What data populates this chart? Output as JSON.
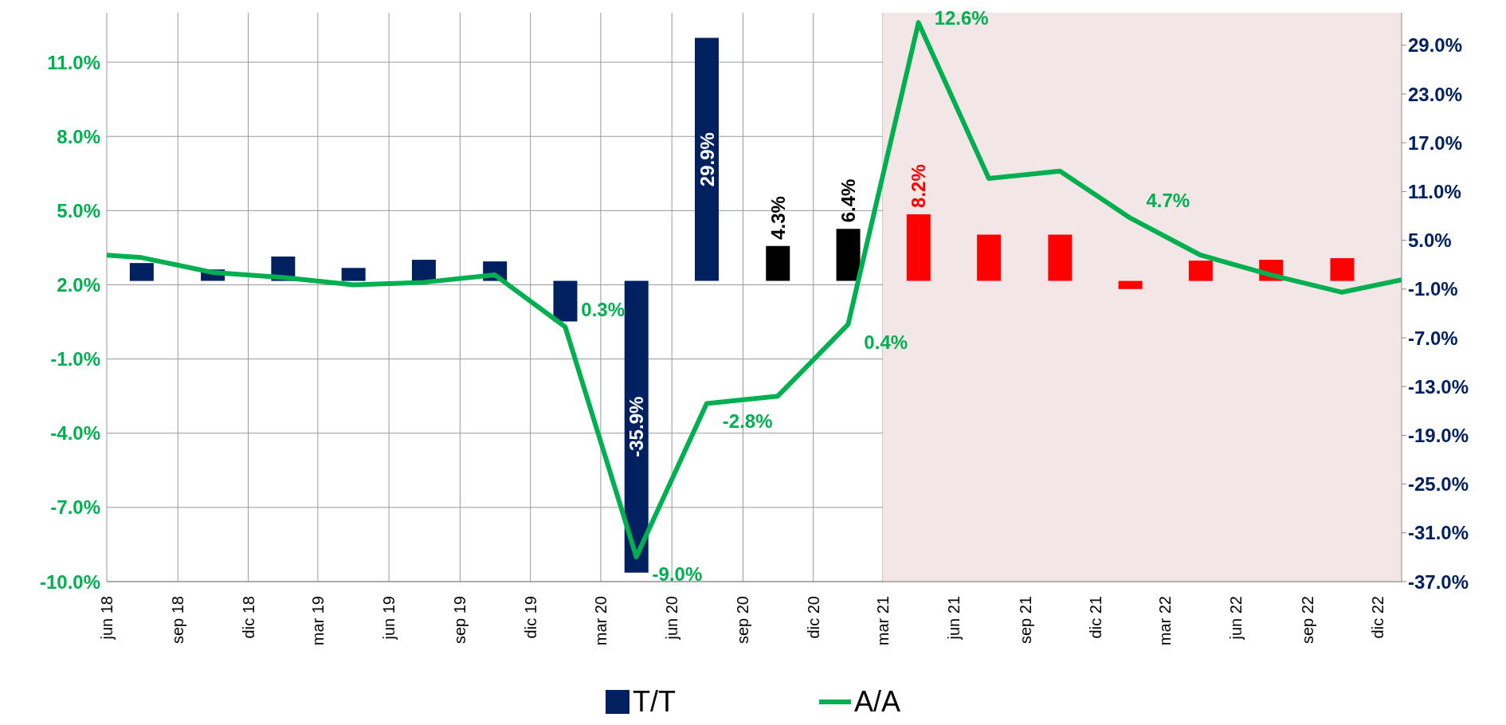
{
  "chart_data": {
    "type": "bar",
    "xlim": [
      "2018-06",
      "2023-01"
    ],
    "xticks": [
      {
        "value": "2018-06",
        "label": "jun 18"
      },
      {
        "value": "2018-09",
        "label": "sep 18"
      },
      {
        "value": "2018-12",
        "label": "dic 18"
      },
      {
        "value": "2019-03",
        "label": "mar 19"
      },
      {
        "value": "2019-06",
        "label": "jun 19"
      },
      {
        "value": "2019-09",
        "label": "sep 19"
      },
      {
        "value": "2019-12",
        "label": "dic 19"
      },
      {
        "value": "2020-03",
        "label": "mar 20"
      },
      {
        "value": "2020-06",
        "label": "jun 20"
      },
      {
        "value": "2020-09",
        "label": "sep 20"
      },
      {
        "value": "2020-12",
        "label": "dic 20"
      },
      {
        "value": "2021-03",
        "label": "mar 21"
      },
      {
        "value": "2021-06",
        "label": "jun 21"
      },
      {
        "value": "2021-09",
        "label": "sep 21"
      },
      {
        "value": "2021-12",
        "label": "dic 21"
      },
      {
        "value": "2022-03",
        "label": "mar 22"
      },
      {
        "value": "2022-06",
        "label": "jun 22"
      },
      {
        "value": "2022-09",
        "label": "sep 22"
      },
      {
        "value": "2022-12",
        "label": "dic 22"
      }
    ],
    "ylim": [
      -10,
      13
    ],
    "yticks": [
      {
        "value": -10,
        "label": "-10.0%"
      },
      {
        "value": -7,
        "label": "-7.0%"
      },
      {
        "value": -4,
        "label": "-4.0%"
      },
      {
        "value": -1,
        "label": "-1.0%"
      },
      {
        "value": 2,
        "label": "2.0%"
      },
      {
        "value": 5,
        "label": "5.0%"
      },
      {
        "value": 8,
        "label": "8.0%"
      },
      {
        "value": 11,
        "label": "11.0%"
      }
    ],
    "y2lim": [
      -37,
      33
    ],
    "y2ticks": [
      {
        "value": -37,
        "label": "-37.0%"
      },
      {
        "value": -31,
        "label": "-31.0%"
      },
      {
        "value": -25,
        "label": "-25.0%"
      },
      {
        "value": -19,
        "label": "-19.0%"
      },
      {
        "value": -13,
        "label": "-13.0%"
      },
      {
        "value": -7,
        "label": "-7.0%"
      },
      {
        "value": -1,
        "label": "-1.0%"
      },
      {
        "value": 5,
        "label": "5.0%"
      },
      {
        "value": 11,
        "label": "11.0%"
      },
      {
        "value": 17,
        "label": "17.0%"
      },
      {
        "value": 23,
        "label": "23.0%"
      },
      {
        "value": 29,
        "label": "29.0%"
      }
    ],
    "grid": true,
    "legend": "bottom",
    "bands": [
      {
        "axis": "x",
        "from": "2021-03",
        "to": "2023-01",
        "color": "#f3e6e6"
      }
    ],
    "series": [
      {
        "name": "T/T",
        "axis": "y2",
        "color": "#002060",
        "x": [
          "2018-07-16",
          "2018-10-16",
          "2019-01-15",
          "2019-04-16",
          "2019-07-16",
          "2019-10-16",
          "2020-01-15",
          "2020-04-16",
          "2020-07-16",
          "2020-10-16",
          "2021-01-15",
          "2021-04-16",
          "2021-07-16",
          "2021-10-16",
          "2022-01-15",
          "2022-04-16",
          "2022-07-16",
          "2022-10-16"
        ],
        "values": [
          2.2,
          1.4,
          3.0,
          1.6,
          2.6,
          2.4,
          -5.0,
          -35.9,
          29.9,
          4.3,
          6.4,
          8.2,
          5.7,
          5.7,
          -1.0,
          2.5,
          2.6,
          2.8
        ],
        "colors": [
          "#002060",
          "#002060",
          "#002060",
          "#002060",
          "#002060",
          "#002060",
          "#002060",
          "#002060",
          "#002060",
          "#000000",
          "#000000",
          "#ff0000",
          "#ff0000",
          "#ff0000",
          "#ff0000",
          "#ff0000",
          "#ff0000",
          "#ff0000"
        ],
        "value_labels": [
          null,
          null,
          null,
          null,
          null,
          null,
          null,
          "-35.9%",
          "29.9%",
          "4.3%",
          "6.4%",
          "8.2%",
          null,
          null,
          null,
          null,
          null,
          null
        ]
      },
      {
        "name": "A/A",
        "type": "line",
        "color": "#00b050",
        "x": [
          "2018-06",
          "2018-07-16",
          "2018-10-16",
          "2019-01-15",
          "2019-04-16",
          "2019-07-16",
          "2019-10-16",
          "2020-01-15",
          "2020-04-16",
          "2020-07-16",
          "2020-10-16",
          "2021-01-15",
          "2021-04-16",
          "2021-07-16",
          "2021-10-16",
          "2022-01-15",
          "2022-04-16",
          "2022-07-16",
          "2022-10-16",
          "2023-01"
        ],
        "values": [
          3.2,
          3.1,
          2.5,
          2.3,
          2.0,
          2.1,
          2.4,
          0.3,
          -9.0,
          -2.8,
          -2.5,
          0.4,
          12.6,
          6.3,
          6.6,
          4.7,
          3.2,
          2.4,
          1.7,
          2.2
        ],
        "value_labels": [
          null,
          null,
          null,
          null,
          null,
          null,
          null,
          "0.3%",
          "-9.0%",
          "-2.8%",
          null,
          "0.4%",
          "12.6%",
          null,
          null,
          "4.7%",
          null,
          null,
          null,
          null
        ]
      }
    ]
  }
}
